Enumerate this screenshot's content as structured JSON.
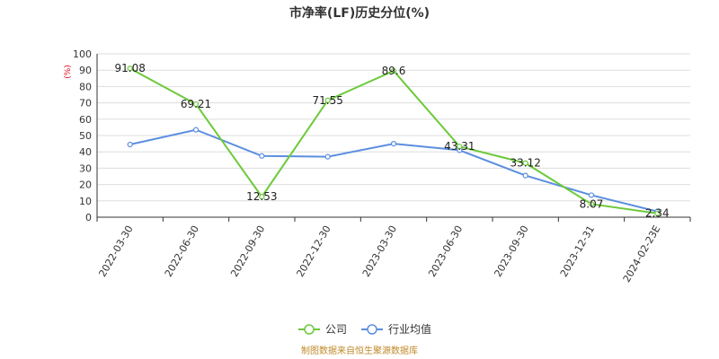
{
  "chart_data": {
    "type": "line",
    "title": "市净率(LF)历史分位(%)",
    "unit_label": "(%)",
    "categories": [
      "2022-03-30",
      "2022-06-30",
      "2022-09-30",
      "2022-12-30",
      "2023-03-30",
      "2023-06-30",
      "2023-09-30",
      "2023-12-31",
      "2024-02-23E"
    ],
    "y_ticks": [
      0,
      10,
      20,
      30,
      40,
      50,
      60,
      70,
      80,
      90,
      100
    ],
    "ylim": [
      0,
      100
    ],
    "grid": true,
    "legend_position": "bottom-center",
    "series": [
      {
        "name": "公司",
        "color": "#6cc93a",
        "show_labels": true,
        "values": [
          91.08,
          69.21,
          12.53,
          71.55,
          89.6,
          43.31,
          33.12,
          8.07,
          2.34
        ],
        "labels": [
          "91.08",
          "69.21",
          "12.53",
          "71.55",
          "89.6",
          "43.31",
          "33.12",
          "8.07",
          "2.34"
        ]
      },
      {
        "name": "行业均值",
        "color": "#5b8ee0",
        "show_labels": false,
        "values": [
          44.5,
          53.5,
          37.5,
          37.0,
          45.0,
          41.0,
          25.5,
          13.5,
          3.5
        ]
      }
    ]
  },
  "source_text": "制图数据来自恒生聚源数据库"
}
